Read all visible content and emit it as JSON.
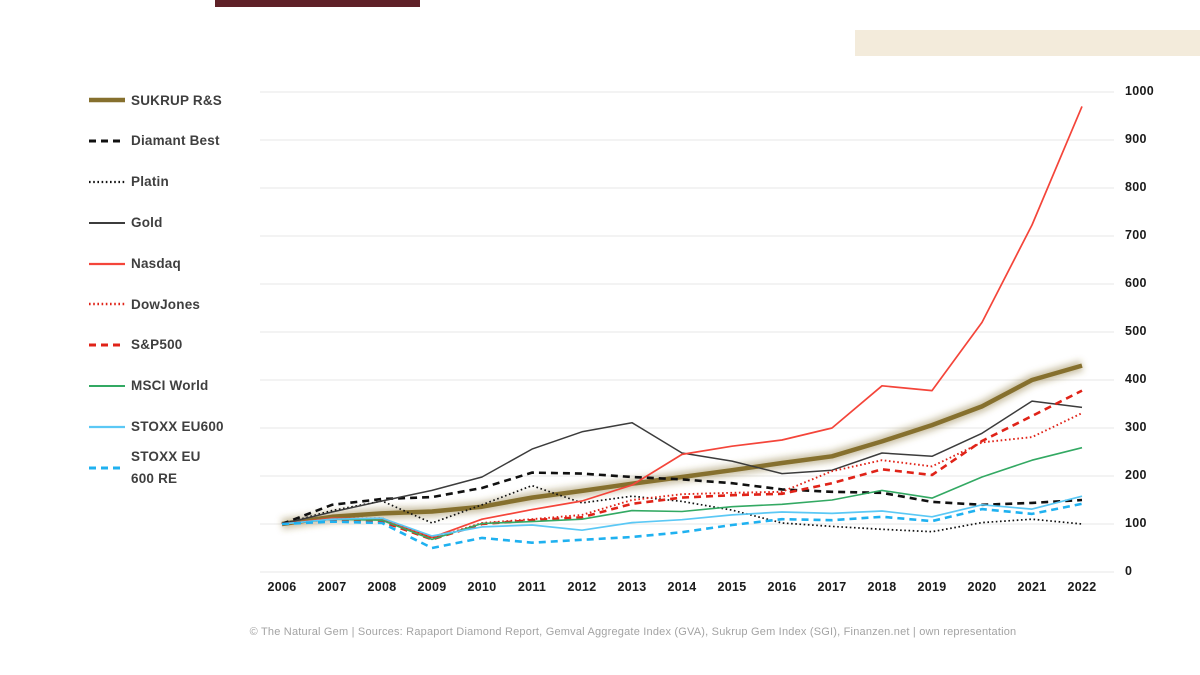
{
  "decor": {
    "top_left_bar_color": "#5f2128",
    "top_right_box_color": "#f3ebdb"
  },
  "chart_data": {
    "type": "line",
    "title": "",
    "xlabel": "",
    "ylabel": "",
    "x": [
      2006,
      2007,
      2008,
      2009,
      2010,
      2011,
      2012,
      2013,
      2014,
      2015,
      2016,
      2017,
      2018,
      2019,
      2020,
      2021,
      2022
    ],
    "ylim": [
      0,
      1000
    ],
    "yticks": [
      0,
      100,
      200,
      300,
      400,
      500,
      600,
      700,
      800,
      900,
      1000
    ],
    "grid": "horizontal",
    "legend_position": "left",
    "series": [
      {
        "name": "SUKRUP R&S",
        "color": "#86702e",
        "width": 4.5,
        "dash": null,
        "glow": true,
        "values": [
          100,
          115,
          122,
          126,
          136,
          155,
          169,
          184,
          198,
          212,
          227,
          241,
          272,
          306,
          345,
          400,
          430
        ]
      },
      {
        "name": "Diamant Best",
        "color": "#111111",
        "width": 2.6,
        "dash": "7,5",
        "glow": false,
        "values": [
          100,
          140,
          152,
          156,
          175,
          207,
          205,
          198,
          193,
          185,
          172,
          167,
          165,
          146,
          140,
          144,
          150
        ]
      },
      {
        "name": "Platin",
        "color": "#111111",
        "width": 1.7,
        "dash": "1.6,2.6",
        "glow": false,
        "values": [
          100,
          128,
          148,
          102,
          140,
          180,
          144,
          158,
          147,
          129,
          102,
          95,
          89,
          84,
          103,
          110,
          100
        ]
      },
      {
        "name": "Gold",
        "color": "#3c3c3c",
        "width": 1.5,
        "dash": null,
        "glow": false,
        "values": [
          100,
          125,
          148,
          170,
          198,
          256,
          292,
          311,
          248,
          231,
          205,
          212,
          248,
          241,
          289,
          356,
          343
        ]
      },
      {
        "name": "Nasdaq",
        "color": "#f4453a",
        "width": 1.7,
        "dash": null,
        "glow": false,
        "values": [
          100,
          112,
          110,
          72,
          110,
          130,
          148,
          181,
          245,
          262,
          275,
          300,
          388,
          378,
          520,
          723,
          970
        ]
      },
      {
        "name": "DowJones",
        "color": "#e02318",
        "width": 1.9,
        "dash": "1.6,2.6",
        "glow": false,
        "values": [
          100,
          110,
          112,
          70,
          102,
          110,
          119,
          150,
          162,
          165,
          167,
          210,
          233,
          220,
          270,
          281,
          331
        ]
      },
      {
        "name": "S&P500",
        "color": "#e02318",
        "width": 2.6,
        "dash": "7,5",
        "glow": false,
        "values": [
          100,
          108,
          105,
          68,
          100,
          108,
          114,
          142,
          155,
          160,
          163,
          185,
          214,
          202,
          273,
          325,
          378
        ]
      },
      {
        "name": "MSCI World",
        "color": "#33a963",
        "width": 1.6,
        "dash": null,
        "glow": false,
        "values": [
          100,
          110,
          108,
          68,
          101,
          105,
          110,
          128,
          126,
          136,
          141,
          150,
          170,
          154,
          198,
          233,
          259
        ]
      },
      {
        "name": "STOXX EU600",
        "color": "#5bc8f5",
        "width": 1.7,
        "dash": null,
        "glow": false,
        "values": [
          100,
          110,
          112,
          75,
          94,
          98,
          87,
          103,
          109,
          119,
          125,
          122,
          127,
          115,
          140,
          131,
          158
        ]
      },
      {
        "name": "STOXX EU 600 RE",
        "color": "#1fb1f0",
        "width": 2.6,
        "dash": "7,5",
        "glow": false,
        "values": [
          100,
          105,
          102,
          50,
          71,
          61,
          67,
          73,
          83,
          98,
          110,
          108,
          115,
          106,
          131,
          121,
          142
        ]
      }
    ]
  },
  "legend": {
    "items": [
      {
        "label": "SUKRUP R&S"
      },
      {
        "label": "Diamant Best"
      },
      {
        "label": "Platin"
      },
      {
        "label": "Gold"
      },
      {
        "label": "Nasdaq"
      },
      {
        "label": "DowJones"
      },
      {
        "label": "S&P500"
      },
      {
        "label": "MSCI World"
      },
      {
        "label": "STOXX EU600"
      },
      {
        "label": "STOXX EU\n600 RE"
      }
    ]
  },
  "footer": {
    "text": "© The Natural Gem | Sources: Rapaport Diamond Report, Gemval Aggregate Index (GVA), Sukrup Gem Index (SGI), Finanzen.net | own representation"
  }
}
